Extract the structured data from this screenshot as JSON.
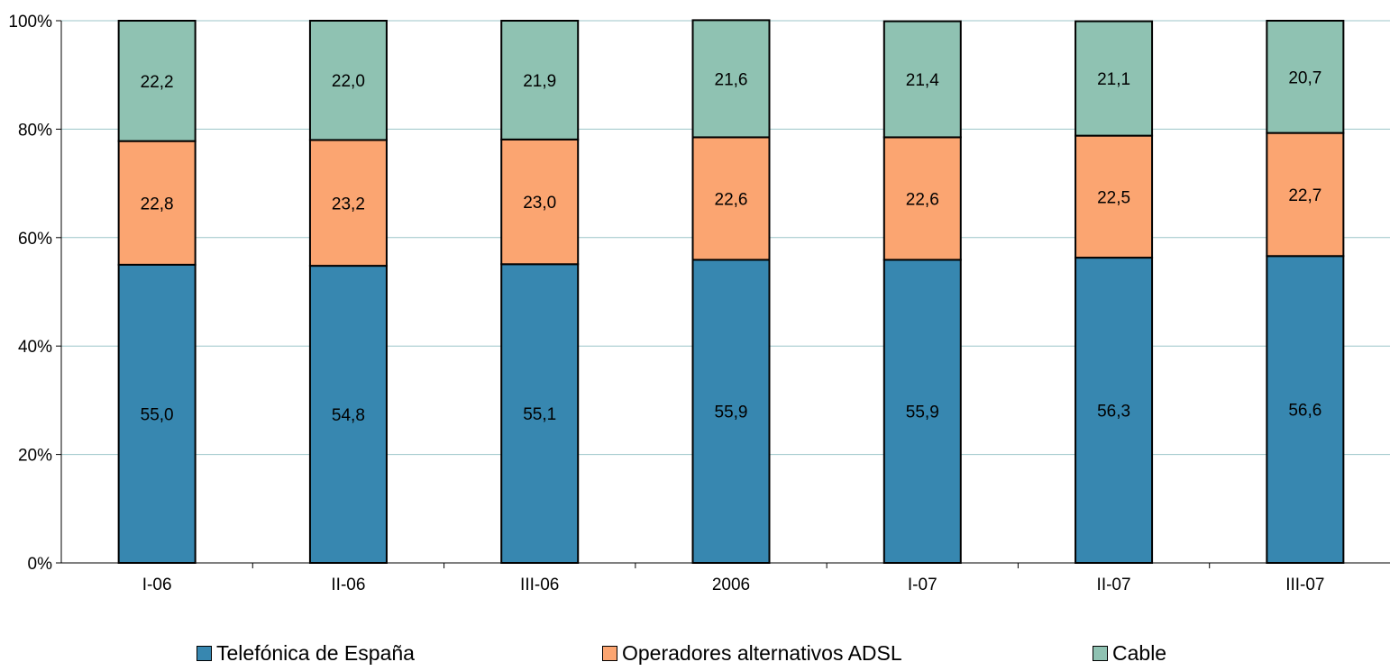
{
  "chart_data": {
    "type": "bar",
    "stacked": true,
    "percent": true,
    "categories": [
      "I-06",
      "II-06",
      "III-06",
      "2006",
      "I-07",
      "II-07",
      "III-07"
    ],
    "series": [
      {
        "name": "Telefónica de España",
        "color": "#3787b0",
        "values": [
          55.0,
          54.8,
          55.1,
          55.9,
          55.9,
          56.3,
          56.6
        ],
        "labels": [
          "55,0",
          "54,8",
          "55,1",
          "55,9",
          "55,9",
          "56,3",
          "56,6"
        ]
      },
      {
        "name": "Operadores alternativos ADSL",
        "color": "#fba571",
        "values": [
          22.8,
          23.2,
          23.0,
          22.6,
          22.6,
          22.5,
          22.7
        ],
        "labels": [
          "22,8",
          "23,2",
          "23,0",
          "22,6",
          "22,6",
          "22,5",
          "22,7"
        ]
      },
      {
        "name": "Cable",
        "color": "#8fc2b2",
        "values": [
          22.2,
          22.0,
          21.9,
          21.6,
          21.4,
          21.1,
          20.7
        ],
        "labels": [
          "22,2",
          "22,0",
          "21,9",
          "21,6",
          "21,4",
          "21,1",
          "20,7"
        ]
      }
    ],
    "yticks": [
      "0%",
      "20%",
      "40%",
      "60%",
      "80%",
      "100%"
    ],
    "ylim": [
      0,
      100
    ],
    "grid": true,
    "legend_position": "bottom"
  }
}
